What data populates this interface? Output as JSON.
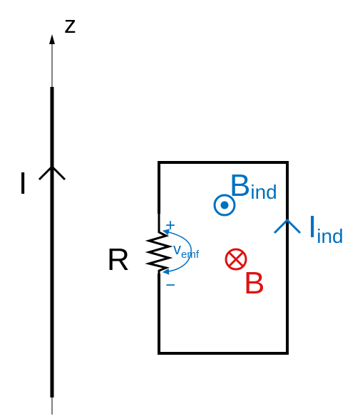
{
  "diagram": {
    "axis": {
      "label": "z"
    },
    "wire": {
      "current_label": "I"
    },
    "loop": {
      "resistor_label": "R",
      "emf": {
        "symbol": "v",
        "subscript": "emf",
        "plus": "+",
        "minus": "−"
      },
      "induced_current": {
        "symbol": "I",
        "subscript": "ind"
      },
      "induced_field": {
        "symbol": "B",
        "subscript": "ind",
        "direction": "out-of-page"
      },
      "applied_field": {
        "symbol": "B",
        "direction": "into-page"
      }
    },
    "colors": {
      "wire": "#000000",
      "induced": "#0070C0",
      "applied": "#E01010"
    },
    "icons": {
      "induced_field": "dot-in-circle-icon",
      "applied_field": "cross-in-circle-icon",
      "current_arrow": "chevron-up-icon"
    }
  }
}
